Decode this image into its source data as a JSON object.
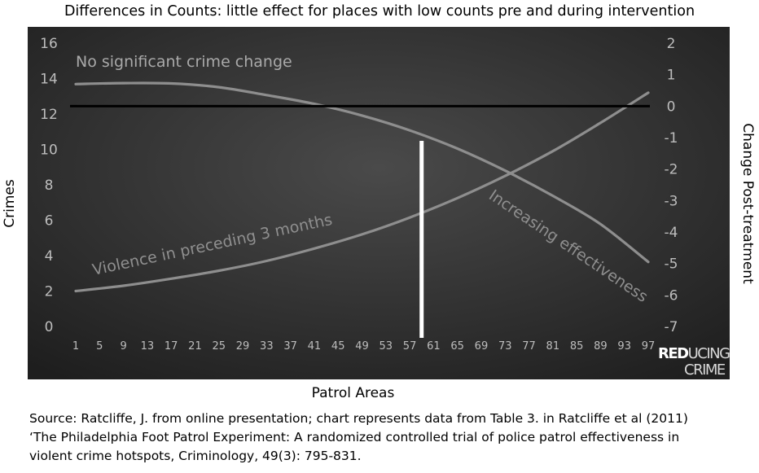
{
  "chart_data": {
    "type": "line",
    "title": "Differences in Counts: little effect for places with low counts pre and during intervention",
    "xlabel": "Patrol Areas",
    "ylabel_left": "Crimes",
    "ylabel_right": "Change Post-treatment",
    "x_ticks": [
      1,
      5,
      9,
      13,
      17,
      21,
      25,
      29,
      33,
      37,
      41,
      45,
      49,
      53,
      57,
      61,
      65,
      69,
      73,
      77,
      81,
      85,
      89,
      93,
      97
    ],
    "y_left_ticks": [
      0,
      2,
      4,
      6,
      8,
      10,
      12,
      14,
      16
    ],
    "y_right_ticks": [
      2,
      1,
      0,
      -1,
      -2,
      -3,
      -4,
      -5,
      -6,
      -7
    ],
    "ylim_left": [
      0,
      16
    ],
    "ylim_right": [
      -7,
      2
    ],
    "xlim": [
      1,
      97
    ],
    "series": [
      {
        "name": "Violence in preceding 3 months",
        "axis": "left",
        "x": [
          1,
          9,
          17,
          25,
          33,
          41,
          49,
          57,
          65,
          73,
          81,
          89,
          97
        ],
        "values": [
          2.0,
          2.3,
          2.7,
          3.15,
          3.7,
          4.4,
          5.2,
          6.15,
          7.25,
          8.5,
          9.9,
          11.5,
          13.2
        ]
      },
      {
        "name": "Increasing effectiveness",
        "axis": "right",
        "x": [
          1,
          9,
          17,
          25,
          33,
          41,
          49,
          57,
          65,
          73,
          81,
          89,
          97
        ],
        "values": [
          0.7,
          0.73,
          0.72,
          0.6,
          0.35,
          0.07,
          -0.3,
          -0.77,
          -1.35,
          -2.05,
          -2.85,
          -3.75,
          -4.95
        ]
      }
    ],
    "zero_line_right": 0,
    "marker_x": 59,
    "annotations": {
      "top_left": "No significant crime change",
      "lower_curve": "Violence in preceding 3 months",
      "falling_curve": "Increasing effectiveness"
    },
    "logo": {
      "line1": "REDUCING",
      "line2": "CRIME",
      "bold_part": "RED",
      "rest_part": "UCING"
    },
    "colors": {
      "background": "#2c2c2c",
      "curve": "#8e8e8e",
      "zero_line": "#000000",
      "marker": "#ffffff",
      "tick_text": "#bdbdbd"
    }
  },
  "source_lines": [
    "Source: Ratcliffe, J. from online presentation; chart represents data from Table 3. in Ratcliffe et al (2011)",
    "‘The Philadelphia Foot Patrol Experiment: A randomized controlled trial of police patrol effectiveness in",
    "violent crime hotspots, Criminology, 49(3): 795-831."
  ]
}
